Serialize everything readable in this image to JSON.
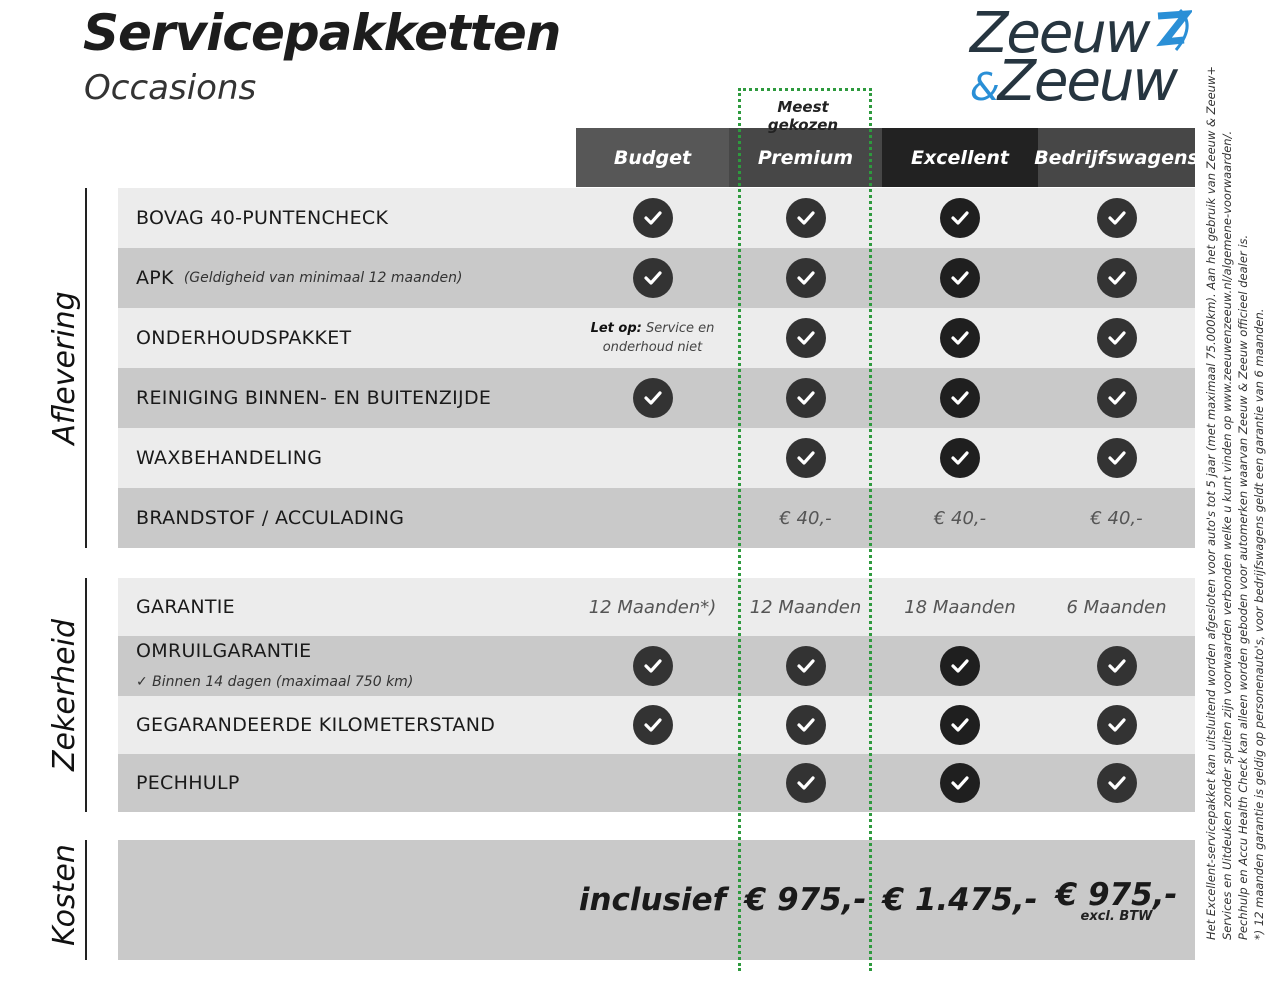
{
  "title": "Servicepakketten",
  "subtitle": "Occasions",
  "logo": {
    "line1": "Zeeuw",
    "amp": "&",
    "line2": "Zeeuw",
    "accent": "#2a8fd6",
    "text_color": "#263540"
  },
  "highlight": {
    "label": "Meest gekozen",
    "color": "#2e9a3e"
  },
  "columns": [
    {
      "label": "Budget",
      "bg": "#575757"
    },
    {
      "label": "Premium",
      "bg": "#474747"
    },
    {
      "label": "Excellent",
      "bg": "#222222"
    },
    {
      "label": "Bedrijfswagens",
      "bg": "#474747"
    }
  ],
  "sections": [
    {
      "label": "Aflevering",
      "rows": [
        {
          "label": "BOVAG 40-PUNTENCHECK",
          "cells": [
            "check",
            "check",
            "check",
            "check"
          ]
        },
        {
          "label": "APK",
          "note": "(Geldigheid van minimaal 12 maanden)",
          "cells": [
            "check",
            "check",
            "check",
            "check"
          ]
        },
        {
          "label": "ONDERHOUDSPAKKET",
          "cells": [
            {
              "bold": "Let op:",
              "text": "Service en onderhoud niet"
            },
            "check",
            "check",
            "check"
          ]
        },
        {
          "label": "REINIGING BINNEN- EN BUITENZIJDE",
          "cells": [
            "check",
            "check",
            "check",
            "check"
          ]
        },
        {
          "label": "WAXBEHANDELING",
          "cells": [
            "",
            "check",
            "check",
            "check"
          ]
        },
        {
          "label": "BRANDSTOF / ACCULADING",
          "cells": [
            "",
            "€ 40,-",
            "€ 40,-",
            "€ 40,-"
          ]
        }
      ]
    },
    {
      "label": "Zekerheid",
      "rows": [
        {
          "label": "GARANTIE",
          "cells": [
            "12 Maanden*)",
            "12 Maanden",
            "18 Maanden",
            "6 Maanden"
          ]
        },
        {
          "label": "OMRUILGARANTIE",
          "sub": "✓   Binnen 14 dagen (maximaal 750 km)",
          "cells": [
            "check",
            "check",
            "check",
            "check"
          ]
        },
        {
          "label": "GEGARANDEERDE KILOMETERSTAND",
          "cells": [
            "check",
            "check",
            "check",
            "check"
          ]
        },
        {
          "label": "PECHHULP",
          "cells": [
            "",
            "check",
            "check",
            "check"
          ]
        }
      ]
    },
    {
      "label": "Kosten",
      "prices": [
        "inclusief",
        "€ 975,-",
        "€ 1.475,-",
        "€ 975,-"
      ],
      "price_note": "excl. BTW"
    }
  ],
  "footnotes": [
    "Het Excellent-servicepakket kan uitsluitend worden afgesloten voor auto's tot 5 jaar (met maximaal 75.000km). Aan het gebruik van Zeeuw & Zeeuw+",
    "Services en Uitdeuken zonder spuiten zijn voorwaarden verbonden welke u kunt vinden op www.zeeuwenzeeuw.nl/algemene-voorwaarden/.",
    "Pechhulp en Accu Health Check kan alleen worden geboden voor automerken waarvan Zeeuw & Zeeuw officieel dealer is.",
    "*) 12 maanden garantie is geldig op personenauto's, voor bedrijfswagens geldt een garantie van 6 maanden."
  ]
}
